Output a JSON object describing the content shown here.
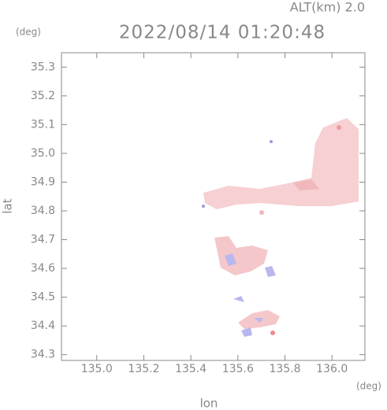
{
  "chart_data": {
    "type": "map",
    "annotation": "ALT(km) 2.0",
    "y_unit": "(deg)",
    "title": "2022/08/14 01:20:48",
    "y_label": "lat",
    "x_label": "lon",
    "x_unit": "(deg)",
    "xlim": [
      134.85,
      136.14
    ],
    "ylim": [
      34.28,
      35.35
    ],
    "xticks": [
      {
        "value": 135,
        "label": "135.0"
      },
      135.2,
      135.4,
      135.6,
      135.8,
      {
        "value": 136,
        "label": "136.0"
      }
    ],
    "yticks": [
      34.3,
      34.4,
      34.5,
      34.6,
      34.7,
      34.8,
      34.9,
      {
        "value": 35,
        "label": "35.0"
      },
      35.1,
      35.2,
      35.3
    ],
    "color": "#888888"
  }
}
